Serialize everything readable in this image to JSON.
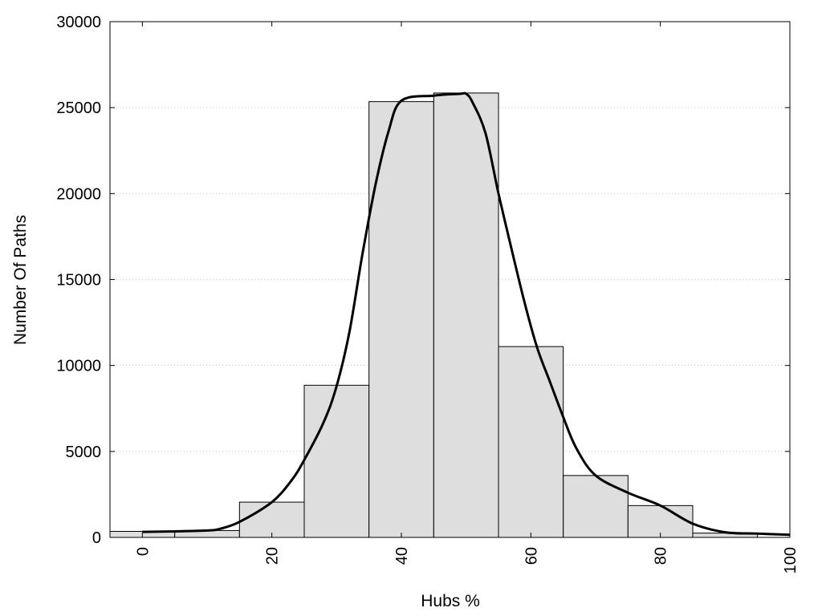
{
  "chart_data": {
    "type": "bar",
    "title": "",
    "xlabel": "Hubs %",
    "ylabel": "Number Of Paths",
    "xlim": [
      -5,
      100
    ],
    "ylim": [
      0,
      30000
    ],
    "x_ticks": [
      0,
      20,
      40,
      60,
      80,
      100
    ],
    "y_ticks": [
      0,
      5000,
      10000,
      15000,
      20000,
      25000,
      30000
    ],
    "grid": true,
    "bin_width": 10,
    "bins": [
      {
        "x": 0,
        "value": 350
      },
      {
        "x": 10,
        "value": 400
      },
      {
        "x": 20,
        "value": 2050
      },
      {
        "x": 30,
        "value": 8850
      },
      {
        "x": 40,
        "value": 25350
      },
      {
        "x": 50,
        "value": 25850
      },
      {
        "x": 60,
        "value": 11100
      },
      {
        "x": 70,
        "value": 3600
      },
      {
        "x": 80,
        "value": 1850
      },
      {
        "x": 90,
        "value": 250
      }
    ],
    "curve": [
      [
        0,
        320
      ],
      [
        5,
        350
      ],
      [
        10,
        400
      ],
      [
        12,
        500
      ],
      [
        15,
        900
      ],
      [
        20,
        2050
      ],
      [
        23,
        3300
      ],
      [
        25,
        4500
      ],
      [
        28,
        6700
      ],
      [
        30,
        8800
      ],
      [
        32,
        12000
      ],
      [
        34,
        16500
      ],
      [
        36,
        20500
      ],
      [
        38,
        23600
      ],
      [
        40,
        25400
      ],
      [
        45,
        25700
      ],
      [
        49,
        25800
      ],
      [
        50,
        25800
      ],
      [
        51,
        25300
      ],
      [
        53,
        23500
      ],
      [
        55,
        20000
      ],
      [
        57,
        16800
      ],
      [
        59,
        13700
      ],
      [
        61,
        11000
      ],
      [
        63,
        9000
      ],
      [
        65,
        7000
      ],
      [
        67,
        5200
      ],
      [
        70,
        3600
      ],
      [
        75,
        2600
      ],
      [
        80,
        1850
      ],
      [
        85,
        800
      ],
      [
        90,
        300
      ],
      [
        95,
        220
      ],
      [
        100,
        150
      ]
    ]
  }
}
